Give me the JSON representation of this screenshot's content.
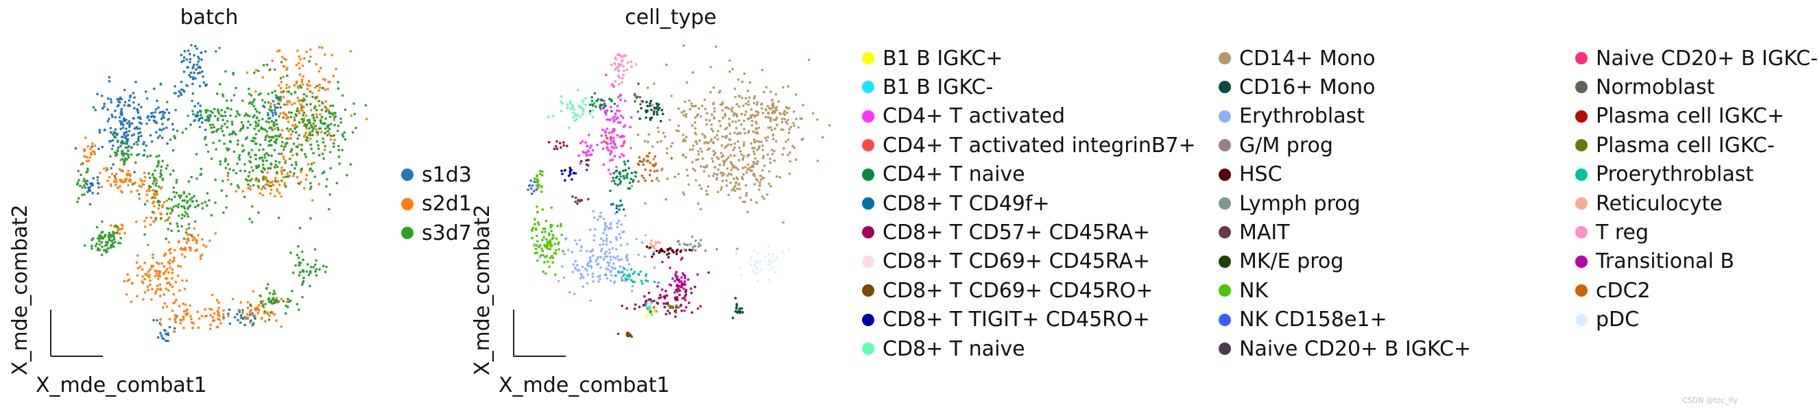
{
  "chart_data": [
    {
      "type": "scatter",
      "title": "batch",
      "xlabel": "X_mde_combat1",
      "ylabel": "X_mde_combat2",
      "legend": "right",
      "grid": false,
      "series": [
        {
          "name": "s1d3",
          "color": "#1f77b4"
        },
        {
          "name": "s2d1",
          "color": "#ff7f0e"
        },
        {
          "name": "s3d7",
          "color": "#2ca02c"
        }
      ]
    },
    {
      "type": "scatter",
      "title": "cell_type",
      "xlabel": "X_mde_combat1",
      "ylabel": "X_mde_combat2",
      "legend": "right",
      "grid": false,
      "series": [
        {
          "name": "B1 B IGKC+",
          "color": "#ffff00"
        },
        {
          "name": "B1 B IGKC-",
          "color": "#1ce6ff"
        },
        {
          "name": "CD4+ T activated",
          "color": "#ff34ff"
        },
        {
          "name": "CD4+ T activated integrinB7+",
          "color": "#ff4a46"
        },
        {
          "name": "CD4+ T naive",
          "color": "#008941"
        },
        {
          "name": "CD8+ T CD49f+",
          "color": "#006fa6"
        },
        {
          "name": "CD8+ T CD57+ CD45RA+",
          "color": "#a30059"
        },
        {
          "name": "CD8+ T CD69+ CD45RA+",
          "color": "#ffdbe5"
        },
        {
          "name": "CD8+ T CD69+ CD45RO+",
          "color": "#7a4900"
        },
        {
          "name": "CD8+ T TIGIT+ CD45RO+",
          "color": "#0000a6"
        },
        {
          "name": "CD8+ T naive",
          "color": "#63ffac"
        },
        {
          "name": "CD14+ Mono",
          "color": "#b79762"
        },
        {
          "name": "CD16+ Mono",
          "color": "#004d43"
        },
        {
          "name": "Erythroblast",
          "color": "#8fb0ff"
        },
        {
          "name": "G/M prog",
          "color": "#997d87"
        },
        {
          "name": "HSC",
          "color": "#5a0007"
        },
        {
          "name": "Lymph prog",
          "color": "#809693"
        },
        {
          "name": "MAIT",
          "color": "#6a3a4c"
        },
        {
          "name": "MK/E prog",
          "color": "#1b4400"
        },
        {
          "name": "NK",
          "color": "#4fc601"
        },
        {
          "name": "NK CD158e1+",
          "color": "#3b5dff"
        },
        {
          "name": "Naive CD20+ B IGKC+",
          "color": "#4a3b53"
        },
        {
          "name": "Naive CD20+ B IGKC-",
          "color": "#ff2f80"
        },
        {
          "name": "Normoblast",
          "color": "#61615a"
        },
        {
          "name": "Plasma cell IGKC+",
          "color": "#ba0900"
        },
        {
          "name": "Plasma cell IGKC-",
          "color": "#6b7900"
        },
        {
          "name": "Proerythroblast",
          "color": "#00c2a0"
        },
        {
          "name": "Reticulocyte",
          "color": "#ffaa92"
        },
        {
          "name": "T reg",
          "color": "#ff90c9"
        },
        {
          "name": "Transitional B",
          "color": "#b903aa"
        },
        {
          "name": "cDC2",
          "color": "#d16100"
        },
        {
          "name": "pDC",
          "color": "#ddefff"
        }
      ]
    }
  ],
  "watermark": "CSDN @tzc_fly"
}
